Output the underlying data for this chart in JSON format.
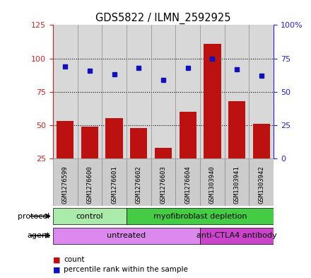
{
  "title": "GDS5822 / ILMN_2592925",
  "samples": [
    "GSM1276599",
    "GSM1276600",
    "GSM1276601",
    "GSM1276602",
    "GSM1276603",
    "GSM1276604",
    "GSM1303940",
    "GSM1303941",
    "GSM1303942"
  ],
  "counts": [
    53,
    49,
    55,
    48,
    33,
    60,
    111,
    68,
    51
  ],
  "percentiles": [
    94,
    91,
    88,
    93,
    84,
    93,
    100,
    92,
    87
  ],
  "ylim_left": [
    25,
    125
  ],
  "ylim_right": [
    0,
    100
  ],
  "yticks_left": [
    25,
    50,
    75,
    100,
    125
  ],
  "yticks_right": [
    0,
    25,
    50,
    75,
    100
  ],
  "ytick_labels_left": [
    "25",
    "50",
    "75",
    "100",
    "125"
  ],
  "ytick_labels_right": [
    "0",
    "25",
    "50",
    "75",
    "100%"
  ],
  "bar_color": "#bb1111",
  "dot_color": "#1111bb",
  "protocol_groups": [
    {
      "label": "control",
      "start": 0,
      "end": 3,
      "color": "#aaeaaa"
    },
    {
      "label": "myofibroblast depletion",
      "start": 3,
      "end": 9,
      "color": "#44cc44"
    }
  ],
  "agent_groups": [
    {
      "label": "untreated",
      "start": 0,
      "end": 6,
      "color": "#dd88ee"
    },
    {
      "label": "anti-CTLA4 antibody",
      "start": 6,
      "end": 9,
      "color": "#cc44cc"
    }
  ],
  "bg_color": "#d8d8d8",
  "grid_color": "#000000",
  "left_axis_color": "#cc2222",
  "right_axis_color": "#2222cc",
  "sample_box_color": "#cccccc",
  "sample_box_edge": "#888888"
}
